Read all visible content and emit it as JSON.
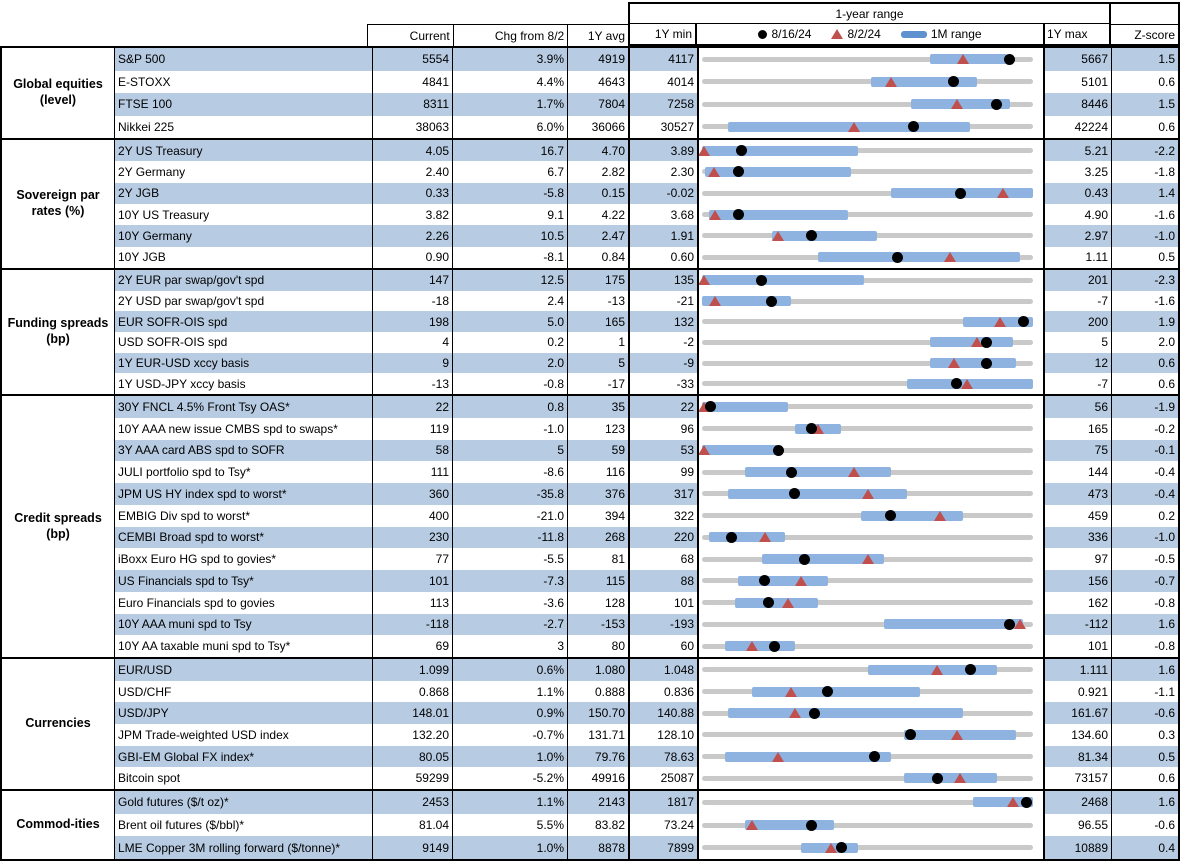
{
  "header": {
    "range_title": "1-year range",
    "columns": {
      "current": "Current",
      "chg": "Chg from 8/2",
      "avg": "1Y avg",
      "min": "1Y min",
      "max": "1Y max",
      "z": "Z-score"
    },
    "legend": {
      "dot_label": "8/16/24",
      "triangle_label": "8/2/24",
      "bar_label": "1M range"
    }
  },
  "chart_data": {
    "type": "table",
    "subtype": "bullet-range-rows",
    "title": "1-year range",
    "legend": [
      "8/16/24",
      "8/2/24",
      "1M range"
    ],
    "columns": [
      "Current",
      "Chg from 8/2",
      "1Y avg",
      "1Y min",
      "1Y max",
      "Z-score"
    ],
    "note": "bar = 1M range [lo,hi], dot = 8/16/24 level, tri = 8/2/24 level; all as fraction of 1Y min..max track",
    "colors": {
      "row_shade": "#b7cbe2",
      "range_bar": "#8fb3e0",
      "legend_bar": "#5e91cf",
      "track": "#c9c9c9",
      "triangle": "#c0504d",
      "dot": "#000000"
    },
    "sections": [
      {
        "name": "Global equities (level)",
        "rows": [
          {
            "label": "S&P 500",
            "current": "5554",
            "chg": "3.9%",
            "avg": "4919",
            "min": "4117",
            "max": "5667",
            "z": "1.5",
            "bar": [
              0.69,
              0.92
            ],
            "dot": 0.93,
            "tri": 0.79
          },
          {
            "label": "E-STOXX",
            "current": "4841",
            "chg": "4.4%",
            "avg": "4643",
            "min": "4014",
            "max": "5101",
            "z": "0.6",
            "bar": [
              0.51,
              0.83
            ],
            "dot": 0.76,
            "tri": 0.57
          },
          {
            "label": "FTSE 100",
            "current": "8311",
            "chg": "1.7%",
            "avg": "7804",
            "min": "7258",
            "max": "8446",
            "z": "1.5",
            "bar": [
              0.63,
              0.93
            ],
            "dot": 0.89,
            "tri": 0.77
          },
          {
            "label": "Nikkei 225",
            "current": "38063",
            "chg": "6.0%",
            "avg": "36066",
            "min": "30527",
            "max": "42224",
            "z": "0.6",
            "bar": [
              0.08,
              0.81
            ],
            "dot": 0.64,
            "tri": 0.46
          }
        ]
      },
      {
        "name": "Sovereign par rates (%)",
        "rows": [
          {
            "label": "2Y US Treasury",
            "current": "4.05",
            "chg": "16.7",
            "avg": "4.70",
            "min": "3.89",
            "max": "5.21",
            "z": "-2.2",
            "bar": [
              0.0,
              0.47
            ],
            "dot": 0.12,
            "tri": 0.005
          },
          {
            "label": "2Y Germany",
            "current": "2.40",
            "chg": "6.7",
            "avg": "2.82",
            "min": "2.30",
            "max": "3.25",
            "z": "-1.8",
            "bar": [
              0.01,
              0.45
            ],
            "dot": 0.11,
            "tri": 0.035
          },
          {
            "label": "2Y JGB",
            "current": "0.33",
            "chg": "-5.8",
            "avg": "0.15",
            "min": "-0.02",
            "max": "0.43",
            "z": "1.4",
            "bar": [
              0.57,
              1.0
            ],
            "dot": 0.78,
            "tri": 0.91
          },
          {
            "label": "10Y US Treasury",
            "current": "3.82",
            "chg": "9.1",
            "avg": "4.22",
            "min": "3.68",
            "max": "4.90",
            "z": "-1.6",
            "bar": [
              0.02,
              0.44
            ],
            "dot": 0.11,
            "tri": 0.04
          },
          {
            "label": "10Y Germany",
            "current": "2.26",
            "chg": "10.5",
            "avg": "2.47",
            "min": "1.91",
            "max": "2.97",
            "z": "-1.0",
            "bar": [
              0.21,
              0.53
            ],
            "dot": 0.33,
            "tri": 0.23
          },
          {
            "label": "10Y JGB",
            "current": "0.90",
            "chg": "-8.1",
            "avg": "0.84",
            "min": "0.60",
            "max": "1.11",
            "z": "0.5",
            "bar": [
              0.35,
              0.96
            ],
            "dot": 0.59,
            "tri": 0.75
          }
        ]
      },
      {
        "name": "Funding spreads (bp)",
        "rows": [
          {
            "label": "2Y EUR par swap/gov't spd",
            "current": "147",
            "chg": "12.5",
            "avg": "175",
            "min": "135",
            "max": "201",
            "z": "-2.3",
            "bar": [
              0.0,
              0.49
            ],
            "dot": 0.18,
            "tri": 0.005
          },
          {
            "label": "2Y USD par swap/gov't spd",
            "current": "-18",
            "chg": "2.4",
            "avg": "-13",
            "min": "-21",
            "max": "-7",
            "z": "-1.6",
            "bar": [
              0.0,
              0.27
            ],
            "dot": 0.21,
            "tri": 0.04
          },
          {
            "label": "EUR SOFR-OIS spd",
            "current": "198",
            "chg": "5.0",
            "avg": "165",
            "min": "132",
            "max": "200",
            "z": "1.9",
            "bar": [
              0.79,
              1.0
            ],
            "dot": 0.97,
            "tri": 0.9
          },
          {
            "label": "USD SOFR-OIS spd",
            "current": "4",
            "chg": "0.2",
            "avg": "1",
            "min": "-2",
            "max": "5",
            "z": "2.0",
            "bar": [
              0.69,
              0.94
            ],
            "dot": 0.86,
            "tri": 0.83
          },
          {
            "label": "1Y EUR-USD xccy basis",
            "current": "9",
            "chg": "2.0",
            "avg": "5",
            "min": "-9",
            "max": "12",
            "z": "0.6",
            "bar": [
              0.69,
              0.95
            ],
            "dot": 0.86,
            "tri": 0.76
          },
          {
            "label": "1Y USD-JPY xccy basis",
            "current": "-13",
            "chg": "-0.8",
            "avg": "-17",
            "min": "-33",
            "max": "-7",
            "z": "0.6",
            "bar": [
              0.62,
              1.0
            ],
            "dot": 0.77,
            "tri": 0.8
          }
        ]
      },
      {
        "name": "Credit spreads (bp)",
        "rows": [
          {
            "label": "30Y FNCL 4.5% Front Tsy OAS*",
            "current": "22",
            "chg": "0.8",
            "avg": "35",
            "min": "22",
            "max": "56",
            "z": "-1.9",
            "bar": [
              0.0,
              0.26
            ],
            "dot": 0.025,
            "tri": 0.005
          },
          {
            "label": "10Y AAA new issue CMBS spd to swaps*",
            "current": "119",
            "chg": "-1.0",
            "avg": "123",
            "min": "96",
            "max": "165",
            "z": "-0.2",
            "bar": [
              0.28,
              0.42
            ],
            "dot": 0.33,
            "tri": 0.35
          },
          {
            "label": "3Y AAA card ABS spd to SOFR",
            "current": "58",
            "chg": "5",
            "avg": "59",
            "min": "53",
            "max": "75",
            "z": "-0.1",
            "bar": [
              0.0,
              0.23
            ],
            "dot": 0.23,
            "tri": 0.005
          },
          {
            "label": "JULI portfolio spd to Tsy*",
            "current": "111",
            "chg": "-8.6",
            "avg": "116",
            "min": "99",
            "max": "144",
            "z": "-0.4",
            "bar": [
              0.13,
              0.57
            ],
            "dot": 0.27,
            "tri": 0.46
          },
          {
            "label": "JPM US HY index spd to worst*",
            "current": "360",
            "chg": "-35.8",
            "avg": "376",
            "min": "317",
            "max": "473",
            "z": "-0.4",
            "bar": [
              0.08,
              0.62
            ],
            "dot": 0.28,
            "tri": 0.5
          },
          {
            "label": "EMBIG Div spd to worst*",
            "current": "400",
            "chg": "-21.0",
            "avg": "394",
            "min": "322",
            "max": "459",
            "z": "0.2",
            "bar": [
              0.48,
              0.79
            ],
            "dot": 0.57,
            "tri": 0.72
          },
          {
            "label": "CEMBI Broad spd to worst*",
            "current": "230",
            "chg": "-11.8",
            "avg": "268",
            "min": "220",
            "max": "336",
            "z": "-1.0",
            "bar": [
              0.02,
              0.25
            ],
            "dot": 0.09,
            "tri": 0.19
          },
          {
            "label": "iBoxx Euro HG spd to govies*",
            "current": "77",
            "chg": "-5.5",
            "avg": "81",
            "min": "68",
            "max": "97",
            "z": "-0.5",
            "bar": [
              0.18,
              0.55
            ],
            "dot": 0.31,
            "tri": 0.5
          },
          {
            "label": "US Financials spd to Tsy*",
            "current": "101",
            "chg": "-7.3",
            "avg": "115",
            "min": "88",
            "max": "156",
            "z": "-0.7",
            "bar": [
              0.11,
              0.38
            ],
            "dot": 0.19,
            "tri": 0.3
          },
          {
            "label": "Euro Financials spd to govies",
            "current": "113",
            "chg": "-3.6",
            "avg": "128",
            "min": "101",
            "max": "162",
            "z": "-0.8",
            "bar": [
              0.1,
              0.35
            ],
            "dot": 0.2,
            "tri": 0.26
          },
          {
            "label": "10Y AAA muni spd to Tsy",
            "current": "-118",
            "chg": "-2.7",
            "avg": "-153",
            "min": "-193",
            "max": "-112",
            "z": "1.6",
            "bar": [
              0.55,
              0.97
            ],
            "dot": 0.93,
            "tri": 0.96
          },
          {
            "label": "10Y AA taxable muni spd to Tsy*",
            "current": "69",
            "chg": "3",
            "avg": "80",
            "min": "60",
            "max": "101",
            "z": "-0.8",
            "bar": [
              0.07,
              0.28
            ],
            "dot": 0.22,
            "tri": 0.15
          }
        ]
      },
      {
        "name": "Currencies",
        "rows": [
          {
            "label": "EUR/USD",
            "current": "1.099",
            "chg": "0.6%",
            "avg": "1.080",
            "min": "1.048",
            "max": "1.111",
            "z": "1.6",
            "bar": [
              0.5,
              0.89
            ],
            "dot": 0.81,
            "tri": 0.71
          },
          {
            "label": "USD/CHF",
            "current": "0.868",
            "chg": "1.1%",
            "avg": "0.888",
            "min": "0.836",
            "max": "0.921",
            "z": "-1.1",
            "bar": [
              0.15,
              0.66
            ],
            "dot": 0.38,
            "tri": 0.27
          },
          {
            "label": "USD/JPY",
            "current": "148.01",
            "chg": "0.9%",
            "avg": "150.70",
            "min": "140.88",
            "max": "161.67",
            "z": "-0.6",
            "bar": [
              0.08,
              0.79
            ],
            "dot": 0.34,
            "tri": 0.28
          },
          {
            "label": "JPM Trade-weighted USD index",
            "current": "132.20",
            "chg": "-0.7%",
            "avg": "131.71",
            "min": "128.10",
            "max": "134.60",
            "z": "0.3",
            "bar": [
              0.61,
              0.95
            ],
            "dot": 0.63,
            "tri": 0.77
          },
          {
            "label": "GBI-EM Global FX index*",
            "current": "80.05",
            "chg": "1.0%",
            "avg": "79.76",
            "min": "78.63",
            "max": "81.34",
            "z": "0.5",
            "bar": [
              0.07,
              0.57
            ],
            "dot": 0.52,
            "tri": 0.23
          },
          {
            "label": "Bitcoin spot",
            "current": "59299",
            "chg": "-5.2%",
            "avg": "49916",
            "min": "25087",
            "max": "73157",
            "z": "0.6",
            "bar": [
              0.61,
              0.89
            ],
            "dot": 0.71,
            "tri": 0.78
          }
        ]
      },
      {
        "name": "Commod-ities",
        "rows": [
          {
            "label": "Gold futures ($/t oz)*",
            "current": "2453",
            "chg": "1.1%",
            "avg": "2143",
            "min": "1817",
            "max": "2468",
            "z": "1.6",
            "bar": [
              0.82,
              1.0
            ],
            "dot": 0.98,
            "tri": 0.94
          },
          {
            "label": "Brent oil futures ($/bbl)*",
            "current": "81.04",
            "chg": "5.5%",
            "avg": "83.82",
            "min": "73.24",
            "max": "96.55",
            "z": "-0.6",
            "bar": [
              0.13,
              0.4
            ],
            "dot": 0.33,
            "tri": 0.15
          },
          {
            "label": "LME Copper 3M rolling forward ($/tonne)*",
            "current": "9149",
            "chg": "1.0%",
            "avg": "8878",
            "min": "7899",
            "max": "10889",
            "z": "0.4",
            "bar": [
              0.3,
              0.47
            ],
            "dot": 0.42,
            "tri": 0.39
          }
        ]
      }
    ]
  }
}
